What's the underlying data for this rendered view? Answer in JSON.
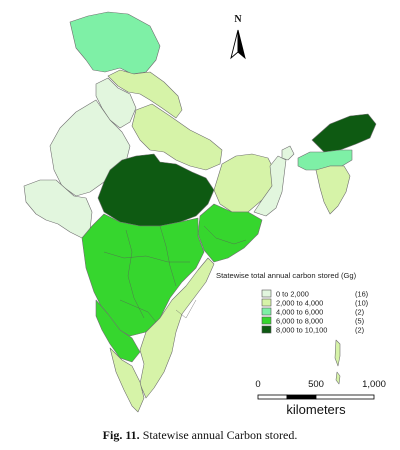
{
  "caption": {
    "label": "Fig. 11.",
    "text": "Statewise annual Carbon stored."
  },
  "north_arrow": {
    "label": "N"
  },
  "legend": {
    "title": "Statewise total annual carbon stored (Gg)",
    "items": [
      {
        "range": "0 to   2,000",
        "count": "(16)",
        "color": "#e2f6de"
      },
      {
        "range": "2,000 to   4,000",
        "count": "(10)",
        "color": "#d6f3a8"
      },
      {
        "range": "4,000 to   6,000",
        "count": "(2)",
        "color": "#7ef0a6"
      },
      {
        "range": "6,000 to   8,000",
        "count": "(5)",
        "color": "#36d62e"
      },
      {
        "range": "8,000 to 10,100",
        "count": "(2)",
        "color": "#0e5a12"
      }
    ]
  },
  "scale_bar": {
    "ticks": [
      "0",
      "500",
      "1,000"
    ],
    "unit": "kilometers"
  },
  "map": {
    "region": "India",
    "classes_by_region": {
      "north_kashmir": 3,
      "himachal_uttarakhand_belt": 2,
      "punjab_haryana": 1,
      "rajasthan": 1,
      "gujarat": 1,
      "uttar_pradesh": 2,
      "bihar_jharkhand": 2,
      "west_bengal": 1,
      "madhya_pradesh": 5,
      "maharashtra_central_south": 4,
      "orissa": 4,
      "karnataka_west": 4,
      "andhra_tamil_east": 2,
      "kerala_south": 2,
      "sikkim": 1,
      "arunachal": 5,
      "assam": 3,
      "northeast_small_states": 2
    }
  }
}
